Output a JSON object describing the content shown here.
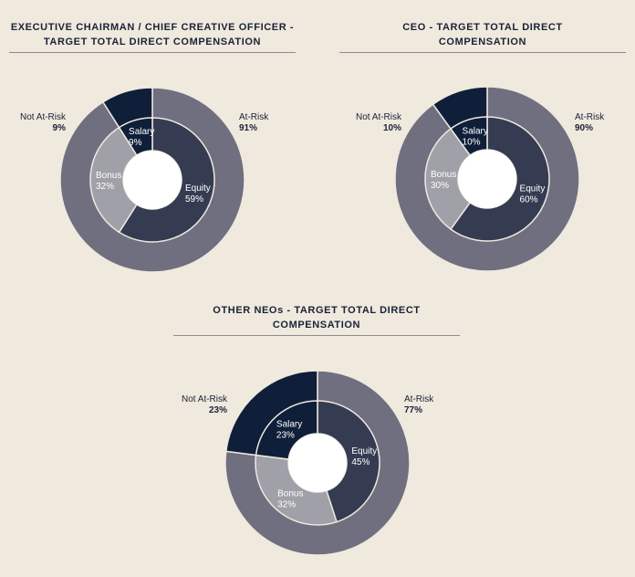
{
  "colors": {
    "background": "#efe9de",
    "at_risk": "#6f6f80",
    "not_at_risk": "#0f1f3a",
    "salary": "#0f1f3a",
    "bonus": "#a0a0a8",
    "equity": "#353c52",
    "center": "#ffffff"
  },
  "chart_data": [
    {
      "type": "donut",
      "title_lines": [
        "EXECUTIVE CHAIRMAN / CHIEF CREATIVE OFFICER -",
        "TARGET TOTAL DIRECT COMPENSATION"
      ],
      "outer": [
        {
          "name": "At-Risk",
          "value": 91,
          "label": "91%"
        },
        {
          "name": "Not At-Risk",
          "value": 9,
          "label": "9%"
        }
      ],
      "inner": [
        {
          "name": "Equity",
          "value": 59,
          "label": "59%"
        },
        {
          "name": "Bonus",
          "value": 32,
          "label": "32%"
        },
        {
          "name": "Salary",
          "value": 9,
          "label": "9%"
        }
      ]
    },
    {
      "type": "donut",
      "title_lines": [
        "CEO - TARGET TOTAL DIRECT",
        "COMPENSATION"
      ],
      "outer": [
        {
          "name": "At-Risk",
          "value": 90,
          "label": "90%"
        },
        {
          "name": "Not At-Risk",
          "value": 10,
          "label": "10%"
        }
      ],
      "inner": [
        {
          "name": "Equity",
          "value": 60,
          "label": "60%"
        },
        {
          "name": "Bonus",
          "value": 30,
          "label": "30%"
        },
        {
          "name": "Salary",
          "value": 10,
          "label": "10%"
        }
      ]
    },
    {
      "type": "donut",
      "title_lines": [
        "OTHER NEOs - TARGET TOTAL DIRECT",
        "COMPENSATION"
      ],
      "outer": [
        {
          "name": "At-Risk",
          "value": 77,
          "label": "77%"
        },
        {
          "name": "Not At-Risk",
          "value": 23,
          "label": "23%"
        }
      ],
      "inner": [
        {
          "name": "Equity",
          "value": 45,
          "label": "45%"
        },
        {
          "name": "Bonus",
          "value": 32,
          "label": "32%"
        },
        {
          "name": "Salary",
          "value": 23,
          "label": "23%"
        }
      ]
    }
  ]
}
